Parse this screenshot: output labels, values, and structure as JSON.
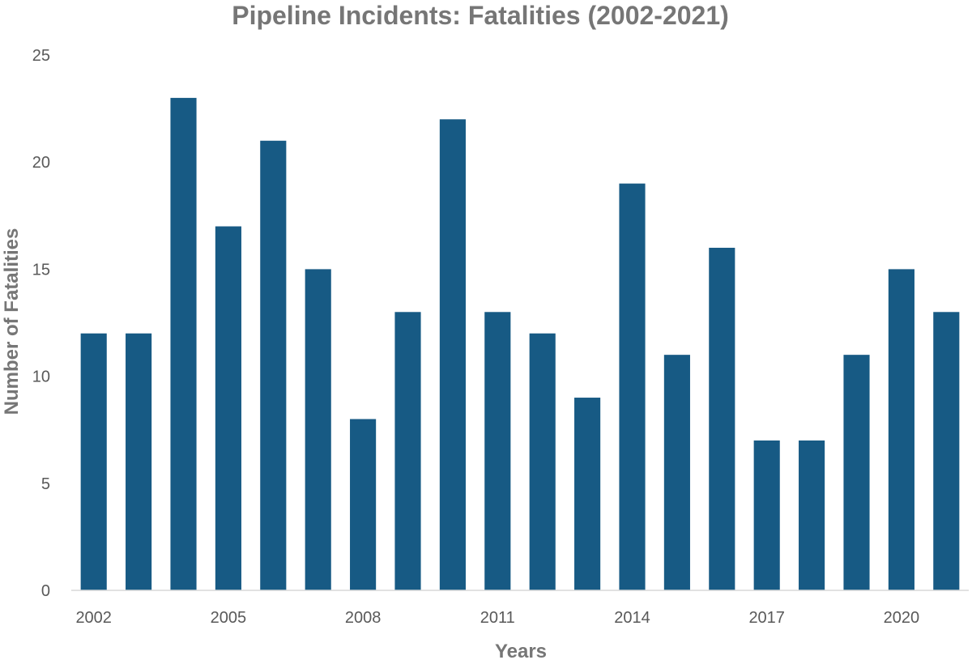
{
  "chart_data": {
    "type": "bar",
    "title": "Pipeline Incidents: Fatalities (2002-2021)",
    "xlabel": "Years",
    "ylabel": "Number of Fatalities",
    "categories": [
      "2002",
      "2003",
      "2004",
      "2005",
      "2006",
      "2007",
      "2008",
      "2009",
      "2010",
      "2011",
      "2012",
      "2013",
      "2014",
      "2015",
      "2016",
      "2017",
      "2018",
      "2019",
      "2020",
      "2021"
    ],
    "values": [
      12,
      12,
      23,
      17,
      21,
      15,
      8,
      13,
      22,
      13,
      12,
      9,
      19,
      11,
      16,
      7,
      7,
      11,
      15,
      13
    ],
    "x_tick_labels": [
      "2002",
      "2005",
      "2008",
      "2011",
      "2014",
      "2017",
      "2020"
    ],
    "y_ticks": [
      "0",
      "5",
      "10",
      "15",
      "20",
      "25"
    ],
    "ylim": [
      0,
      25
    ],
    "grid": false,
    "legend": "none",
    "bar_color": "#175a84"
  }
}
